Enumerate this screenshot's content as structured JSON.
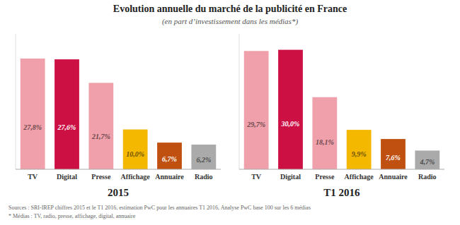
{
  "chart_data": [
    {
      "type": "bar",
      "title": "Evolution annuelle du marché de la publicité en France",
      "subtitle": "(en part d’investissement dans les médias*)",
      "annotations": [
        "Sources : SRI-IREP chiffres 2015 et le T1 2016, estimation PwC pour les annuaires T1 2016, Analyse PwC base 100 sur les 6 médias",
        "* Médias : TV, radio, presse, affichage, digital, annuaire"
      ],
      "xlabel": "2015",
      "categories": [
        "TV",
        "Digital",
        "Presse",
        "Affichage",
        "Annuaire",
        "Radio"
      ],
      "values": [
        27.8,
        27.6,
        21.7,
        10.0,
        6.7,
        6.2
      ],
      "value_labels": [
        "27,8%",
        "27,6%",
        "21,7%",
        "10,0%",
        "6,7%",
        "6,2%"
      ],
      "colors": [
        "#f0a0aa",
        "#cc1044",
        "#f0a0aa",
        "#f5b800",
        "#c05010",
        "#aaaaaa"
      ],
      "ylim": [
        0,
        34
      ],
      "data_labels": true,
      "tick_labels": "x",
      "grid": false
    },
    {
      "type": "bar",
      "xlabel": "T1 2016",
      "categories": [
        "TV",
        "Digital",
        "Presse",
        "Affichage",
        "Annuaire",
        "Radio"
      ],
      "values": [
        29.7,
        30.0,
        18.1,
        9.9,
        7.6,
        4.7
      ],
      "value_labels": [
        "29,7%",
        "30,0%",
        "18,1%",
        "9,9%",
        "7,6%",
        "4,7%"
      ],
      "colors": [
        "#f0a0aa",
        "#cc1044",
        "#f0a0aa",
        "#f5b800",
        "#c05010",
        "#aaaaaa"
      ],
      "ylim": [
        0,
        34
      ],
      "data_labels": true,
      "tick_labels": "x",
      "grid": false
    }
  ]
}
